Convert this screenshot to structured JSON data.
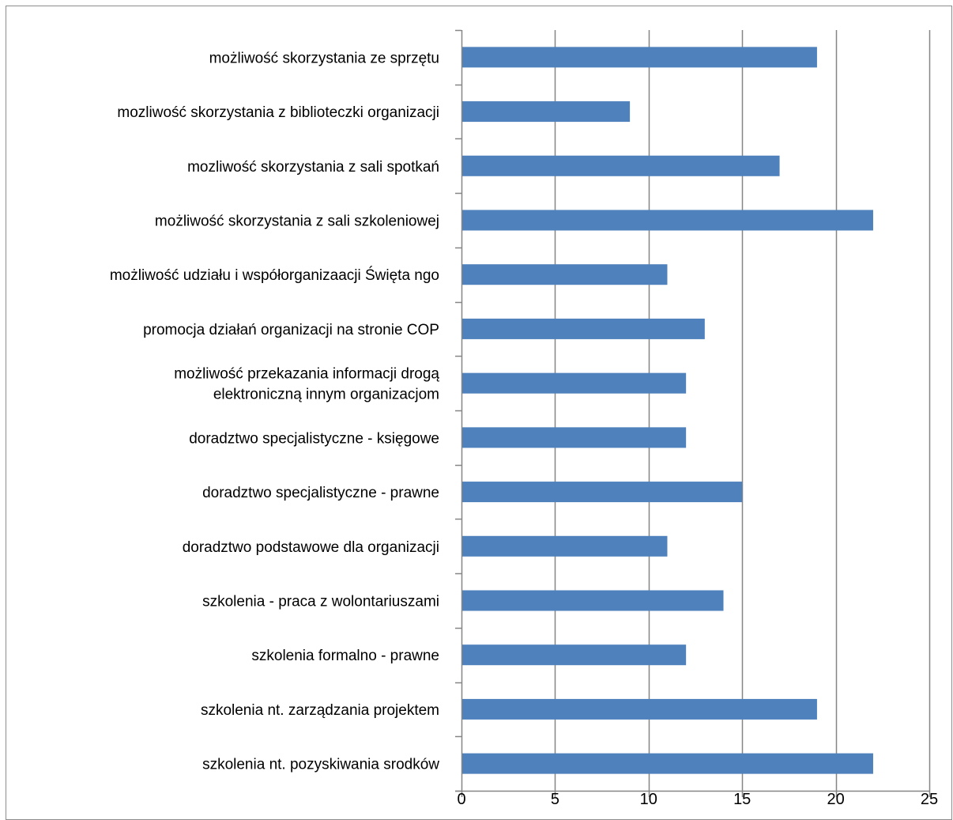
{
  "chart_data": {
    "type": "bar",
    "orientation": "horizontal",
    "categories": [
      "możliwość skorzystania ze sprzętu",
      "mozliwość skorzystania z biblioteczki organizacji",
      "mozliwość skorzystania z sali spotkań",
      "możliwość skorzystania z sali szkoleniowej",
      "możliwość udziału i współorganizaacji Święta ngo",
      "promocja działań organizacji na stronie COP",
      "możliwość przekazania informacji drogą elektroniczną innym organizacjom",
      "doradztwo specjalistyczne - księgowe",
      "doradztwo specjalistyczne - prawne",
      "doradztwo podstawowe dla organizacji",
      "szkolenia - praca z wolontariuszami",
      "szkolenia formalno - prawne",
      "szkolenia nt. zarządzania projektem",
      "szkolenia nt. pozyskiwania srodków"
    ],
    "category_lines": [
      [
        "możliwość skorzystania ze sprzętu"
      ],
      [
        "mozliwość skorzystania z biblioteczki organizacji"
      ],
      [
        "mozliwość skorzystania z sali spotkań"
      ],
      [
        "możliwość skorzystania z sali szkoleniowej"
      ],
      [
        "możliwość udziału i współorganizaacji Święta ngo"
      ],
      [
        "promocja działań organizacji na stronie COP"
      ],
      [
        "możliwość przekazania informacji drogą",
        "elektroniczną innym organizacjom"
      ],
      [
        "doradztwo specjalistyczne - księgowe"
      ],
      [
        "doradztwo specjalistyczne - prawne"
      ],
      [
        "doradztwo podstawowe dla organizacji"
      ],
      [
        "szkolenia - praca z wolontariuszami"
      ],
      [
        "szkolenia formalno - prawne"
      ],
      [
        "szkolenia nt. zarządzania projektem"
      ],
      [
        "szkolenia nt. pozyskiwania srodków"
      ]
    ],
    "values": [
      19,
      9,
      17,
      22,
      11,
      13,
      12,
      12,
      15,
      11,
      14,
      12,
      19,
      22
    ],
    "xlim": [
      0,
      25
    ],
    "xticks": [
      0,
      5,
      10,
      15,
      20,
      25
    ],
    "title": "",
    "xlabel": "",
    "ylabel": "",
    "grid": "vertical major gridlines",
    "legend": "none",
    "bar_color": "#4f81bd",
    "grid_color": "#868686",
    "axis_color": "#868686"
  }
}
